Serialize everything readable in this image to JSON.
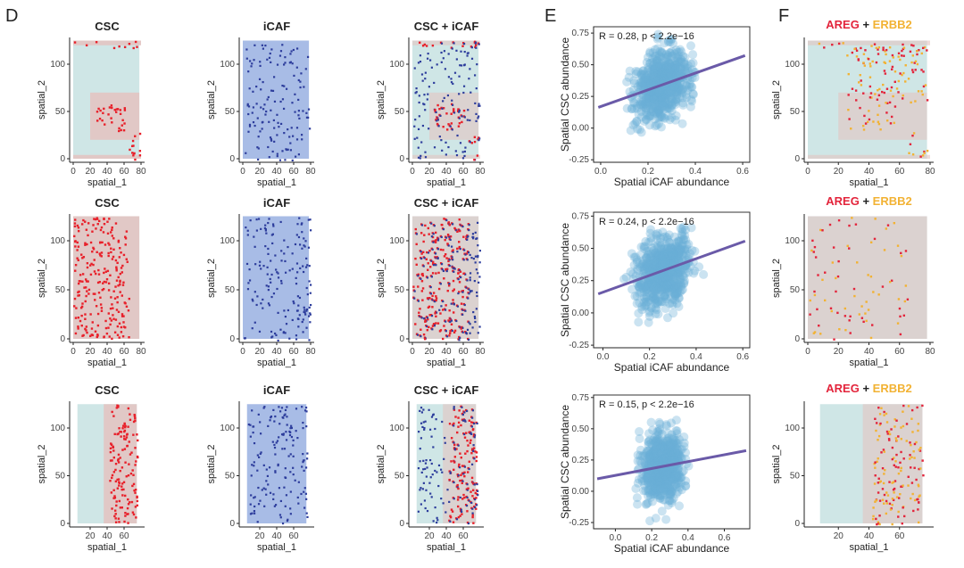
{
  "panel_labels": {
    "d": "D",
    "e": "E",
    "f": "F"
  },
  "colors": {
    "csc": "#e8202a",
    "icaf": "#2d3d9c",
    "icaf_bg": "#a8bce6",
    "tissue": "#cfe6e6",
    "tissue_pink": "#e2c4c2",
    "scatter": "#6aaed6",
    "fit": "#6a5aa8",
    "areg": "#e3243b",
    "erbb2": "#f2b233"
  },
  "chart_data": {
    "D": {
      "type": "scatter",
      "column_titles": [
        "CSC",
        "iCAF",
        "CSC + iCAF"
      ],
      "xlabel": "spatial_1",
      "ylabel": "spatial_2",
      "rows": [
        {
          "xticks": [
            "0",
            "20",
            "40",
            "60",
            "80"
          ],
          "yticks": [
            "0",
            "50",
            "100"
          ]
        },
        {
          "xticks": [
            "0",
            "20",
            "40",
            "60",
            "80"
          ],
          "yticks": [
            "0",
            "50",
            "100"
          ]
        },
        {
          "xticks": [
            "20",
            "40",
            "60"
          ],
          "yticks": [
            "0",
            "50",
            "100"
          ]
        }
      ]
    },
    "E": {
      "type": "scatter",
      "xlabel": "Spatial iCAF abundance",
      "ylabel": "Spatial CSC abundance",
      "plots": [
        {
          "annotation": "R = 0.28, p < 2.2e−16",
          "R": 0.28,
          "xlim": [
            -0.03,
            0.63
          ],
          "ylim": [
            -0.27,
            0.8
          ],
          "xticks": [
            "0.0",
            "0.2",
            "0.4",
            "0.6"
          ],
          "yticks": [
            "-0.25",
            "0.00",
            "0.25",
            "0.50",
            "0.75"
          ],
          "fit": {
            "intercept": 0.17,
            "slope": 0.66
          }
        },
        {
          "annotation": "R = 0.24, p < 2.2e−16",
          "R": 0.24,
          "xlim": [
            -0.04,
            0.63
          ],
          "ylim": [
            -0.27,
            0.78
          ],
          "xticks": [
            "0.0",
            "0.2",
            "0.4",
            "0.6"
          ],
          "yticks": [
            "-0.25",
            "0.00",
            "0.25",
            "0.50",
            "0.75"
          ],
          "fit": {
            "intercept": 0.16,
            "slope": 0.65
          }
        },
        {
          "annotation": "R = 0.15, p < 2.2e−16",
          "R": 0.15,
          "xlim": [
            -0.12,
            0.74
          ],
          "ylim": [
            -0.3,
            0.77
          ],
          "xticks": [
            "0.0",
            "0.2",
            "0.4",
            "0.6"
          ],
          "yticks": [
            "-0.25",
            "0.00",
            "0.25",
            "0.50",
            "0.75"
          ],
          "fit": {
            "intercept": 0.127,
            "slope": 0.275
          }
        }
      ]
    },
    "F": {
      "type": "scatter",
      "title_parts": [
        "AREG",
        "+",
        "ERBB2"
      ],
      "xlabel": "spatial_1",
      "ylabel": "spatial_2",
      "rows": [
        {
          "xticks": [
            "0",
            "20",
            "40",
            "60",
            "80"
          ],
          "yticks": [
            "0",
            "50",
            "100"
          ]
        },
        {
          "xticks": [
            "0",
            "20",
            "40",
            "60",
            "80"
          ],
          "yticks": [
            "0",
            "50",
            "100"
          ]
        },
        {
          "xticks": [
            "20",
            "40",
            "60"
          ],
          "yticks": [
            "0",
            "50",
            "100"
          ]
        }
      ]
    }
  }
}
